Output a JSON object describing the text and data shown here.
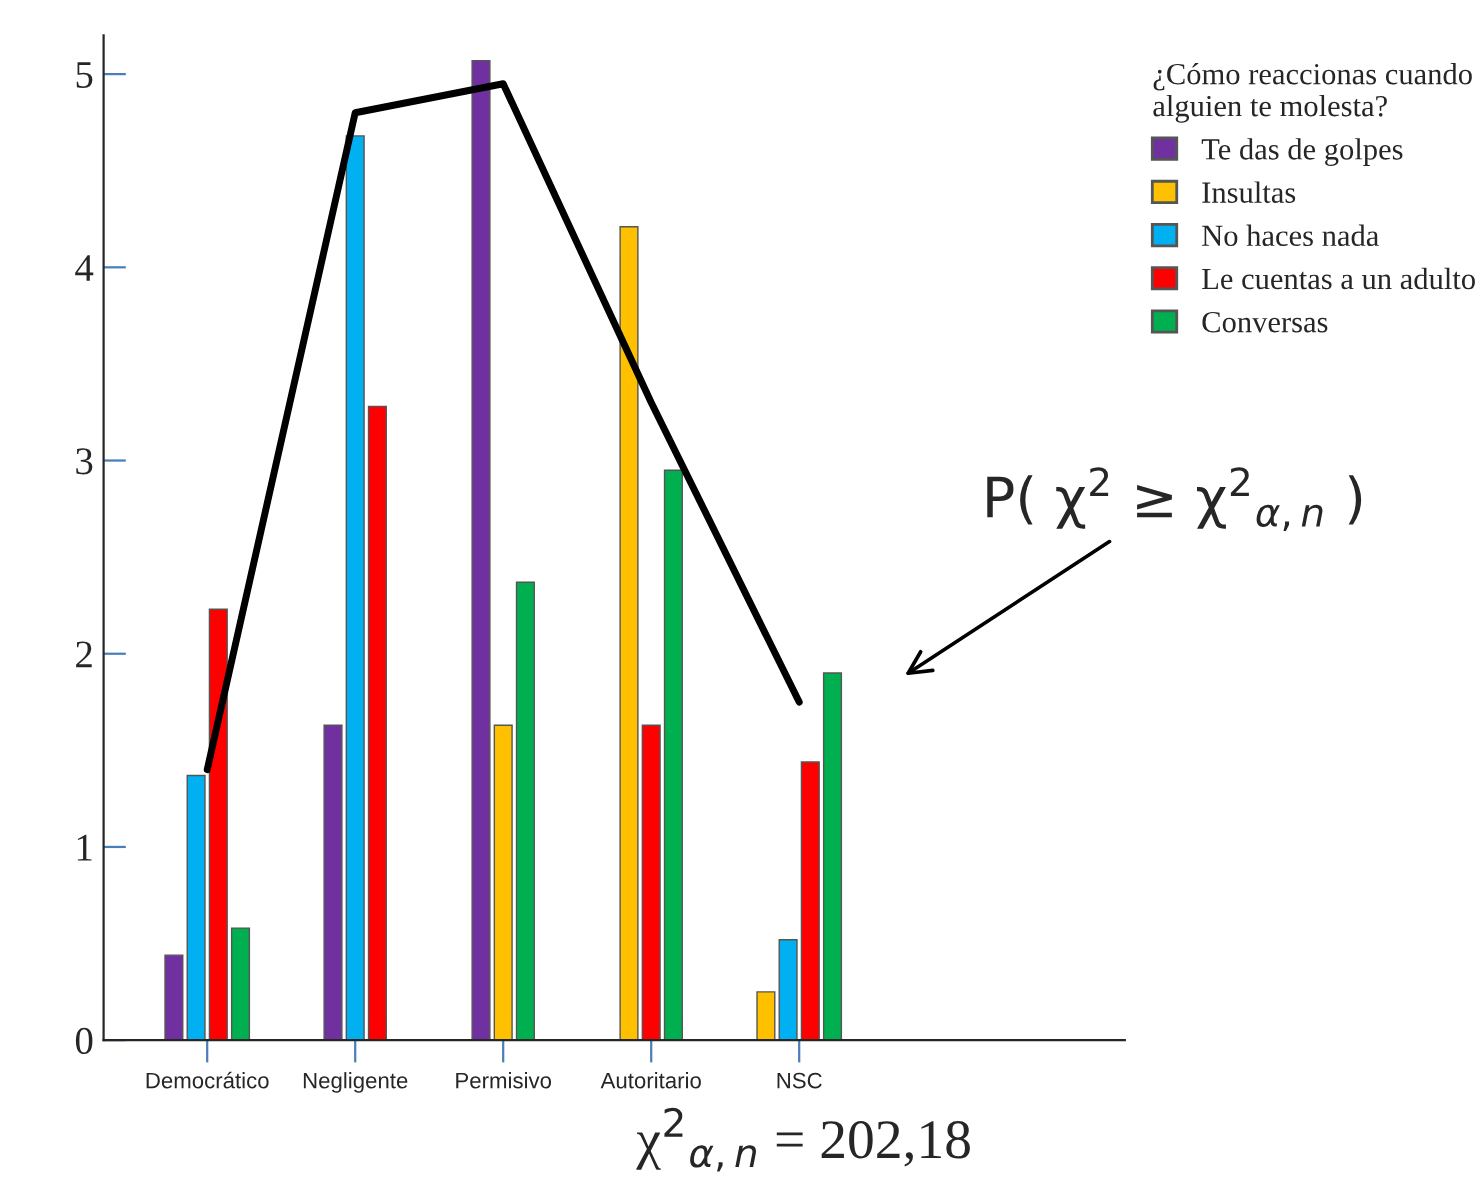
{
  "chart_data": {
    "type": "bar",
    "legend_title": "¿Cómo reaccionas cuando alguien te molesta?",
    "legend": "right",
    "categories": [
      "Democrático",
      "Negligente",
      "Permisivo",
      "Autoritario",
      "NSC"
    ],
    "ylim": [
      0,
      5.2
    ],
    "yticks": [
      0,
      1,
      2,
      3,
      4,
      5
    ],
    "grid": false,
    "series": [
      {
        "name": "Te das de golpes",
        "color": "#7030a0",
        "values": [
          0.44,
          1.63,
          5.07,
          null,
          null
        ]
      },
      {
        "name": "Insultas",
        "color": "#ffc000",
        "values": [
          null,
          null,
          1.63,
          4.21,
          0.25
        ]
      },
      {
        "name": "No haces nada",
        "color": "#00b0f0",
        "values": [
          1.37,
          4.68,
          null,
          null,
          0.52
        ]
      },
      {
        "name": "Le cuentas a un adulto",
        "color": "#ff0000",
        "values": [
          2.23,
          3.28,
          null,
          1.63,
          1.44
        ]
      },
      {
        "name": "Conversas",
        "color": "#00b050",
        "values": [
          0.58,
          null,
          2.37,
          2.95,
          1.9
        ]
      },
      {
        "type": "line",
        "color": "#000000",
        "values": [
          1.4,
          4.8,
          4.95,
          3.3,
          1.75
        ]
      }
    ],
    "annotations": [
      "P( χ$^{2}$ ≥ χ$^{2}$$_{α,n}$ )",
      "χ$^{2}$$_{α,n}$ = 202,18"
    ]
  }
}
